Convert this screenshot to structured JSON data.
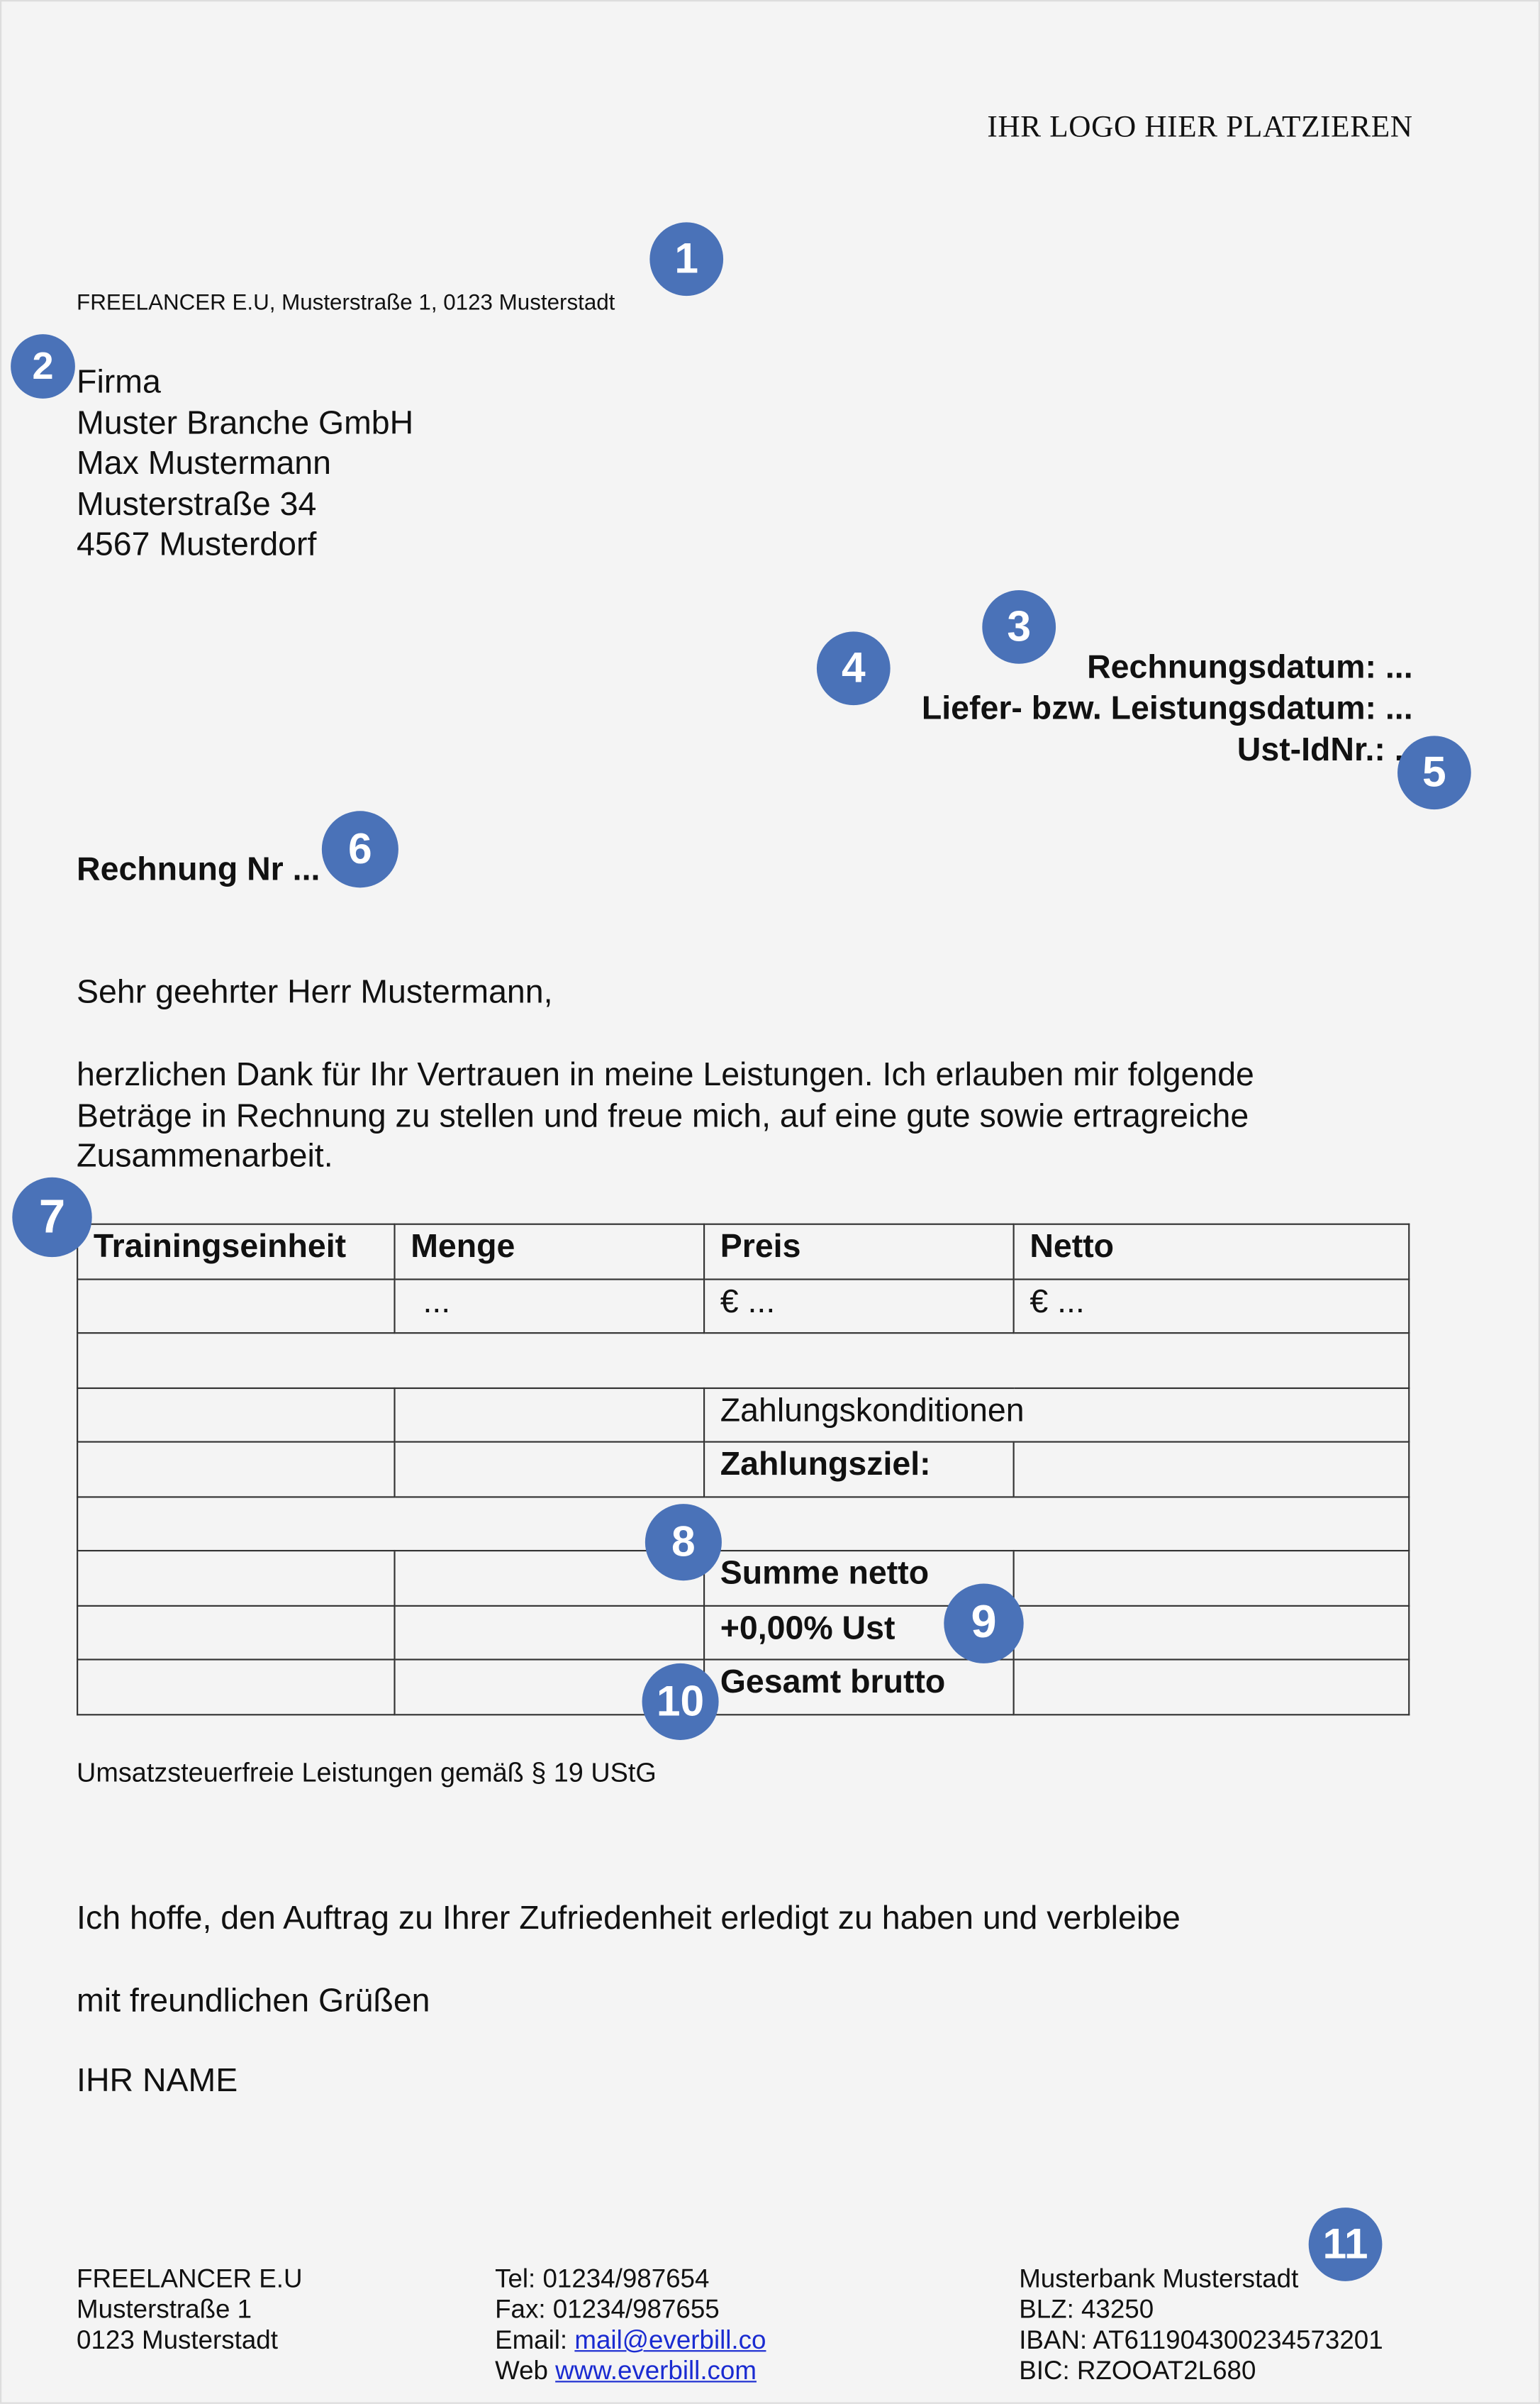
{
  "logo_placeholder": "IHR LOGO HIER PLATZIEREN",
  "sender_line": "FREELANCER E.U, Musterstraße 1,  0123 Musterstadt",
  "recipient": [
    "Firma",
    "Muster Branche GmbH",
    "Max Mustermann",
    "Musterstraße 34",
    "4567 Musterdorf"
  ],
  "meta": {
    "invoice_date": "Rechnungsdatum: ...",
    "delivery_date": "Liefer- bzw. Leistungsdatum: ...",
    "vat_id": "Ust-IdNr.: .."
  },
  "invoice_title": "Rechnung Nr ...",
  "salutation": "Sehr geehrter Herr Mustermann,",
  "intro": [
    "herzlichen Dank für Ihr Vertrauen in meine Leistungen. Ich erlauben mir folgende",
    "Beträge in Rechnung zu stellen und freue mich, auf eine gute sowie ertragreiche",
    "Zusammenarbeit."
  ],
  "table": {
    "headers": [
      "Trainingseinheit",
      "Menge",
      "Preis",
      "Netto"
    ],
    "item": [
      "",
      "...",
      "€ ...",
      "€ ..."
    ],
    "payment_terms": "Zahlungskonditionen",
    "due": "Zahlungsziel:",
    "net_sum": "Summe netto",
    "vat": "+0,00% Ust",
    "gross": "Gesamt brutto"
  },
  "tax_note": "Umsatzsteuerfreie Leistungen gemäß § 19 UStG",
  "closing": "Ich hoffe, den Auftrag zu Ihrer Zufriedenheit erledigt zu haben und verbleibe",
  "regards": "mit freundlichen Grüßen",
  "name": "IHR NAME",
  "footer": {
    "company": [
      "FREELANCER E.U",
      "Musterstraße 1",
      "0123 Musterstadt"
    ],
    "tel": "Tel: 01234/987654",
    "fax": "Fax: 01234/987655",
    "email_label": "Email: ",
    "email": "mail@everbill.co",
    "web_label": "Web ",
    "web": "www.everbill.com",
    "bank": [
      "Musterbank Musterstadt",
      "BLZ: 43250",
      "IBAN: AT611904300234573201",
      "BIC: RZOOAT2L680"
    ]
  },
  "badges": [
    "1",
    "2",
    "3",
    "4",
    "5",
    "6",
    "7",
    "8",
    "9",
    "10",
    "11"
  ],
  "colors": {
    "badge": "#4a72b8",
    "link": "#1a2bd1"
  }
}
